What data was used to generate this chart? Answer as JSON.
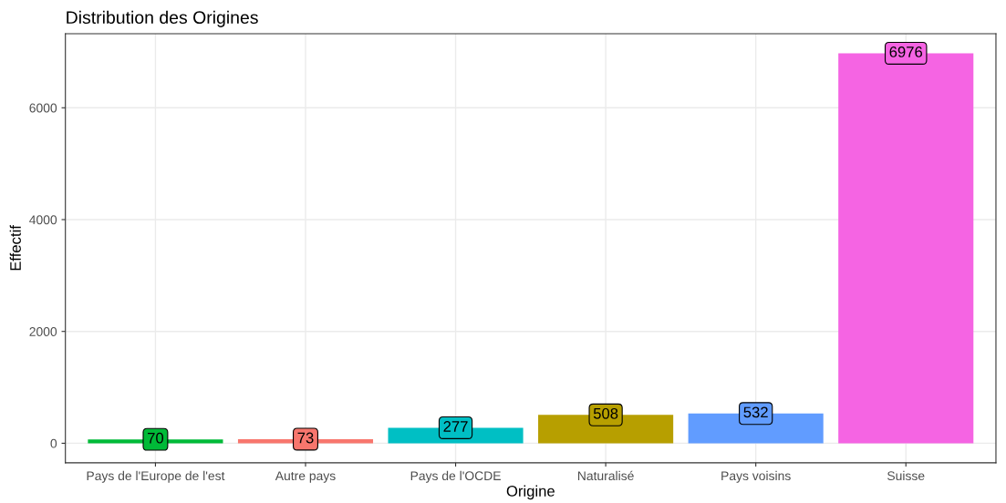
{
  "chart_data": {
    "type": "bar",
    "title": "Distribution des Origines",
    "xlabel": "Origine",
    "ylabel": "Effectif",
    "categories": [
      "Pays de l'Europe de l'est",
      "Autre pays",
      "Pays de l'OCDE",
      "Naturalisé",
      "Pays voisins",
      "Suisse"
    ],
    "values": [
      70,
      73,
      277,
      508,
      532,
      6976
    ],
    "colors": [
      "#00ba38",
      "#f8766d",
      "#00bfc4",
      "#b79f00",
      "#619cff",
      "#f564e3"
    ],
    "ylim": [
      -349,
      7325
    ],
    "yticks": [
      0,
      2000,
      4000,
      6000
    ],
    "grid": true,
    "data_labels": true
  }
}
